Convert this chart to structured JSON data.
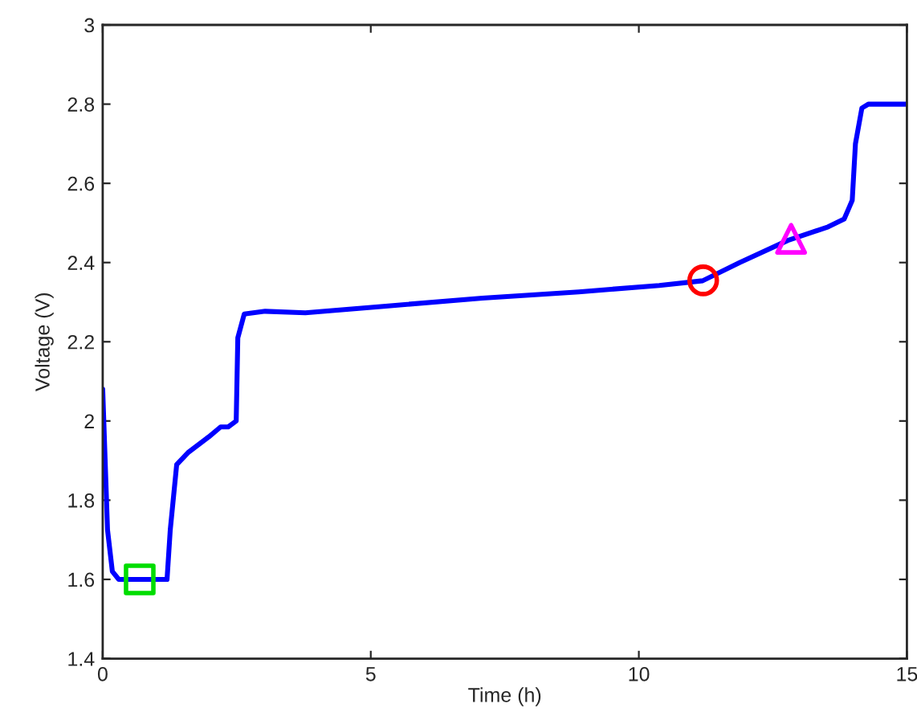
{
  "chart_data": {
    "type": "line",
    "xlabel": "Time (h)",
    "ylabel": "Voltage (V)",
    "xlim": [
      0,
      15
    ],
    "ylim": [
      1.4,
      3
    ],
    "xticks": [
      0,
      5,
      10,
      15
    ],
    "yticks": [
      1.4,
      1.6,
      1.8,
      2,
      2.2,
      2.4,
      2.6,
      2.8,
      3
    ],
    "grid": false,
    "series": [
      {
        "type": "line",
        "color": "#0000ff",
        "marker": "none",
        "x": [
          0,
          0.09,
          0.18,
          0.3,
          1.2,
          1.26,
          1.38,
          1.59,
          1.98,
          2.2,
          2.34,
          2.49,
          2.52,
          2.64,
          3.03,
          3.78,
          5.28,
          7.08,
          8.88,
          10.38,
          11.19,
          11.88,
          12.78,
          13.53,
          13.83,
          13.98,
          14.04,
          14.16,
          14.28,
          15
        ],
        "values": [
          2.08,
          1.725,
          1.62,
          1.6,
          1.6,
          1.725,
          1.89,
          1.92,
          1.96,
          1.985,
          1.985,
          2.0,
          2.21,
          2.27,
          2.277,
          2.273,
          2.29,
          2.31,
          2.326,
          2.342,
          2.354,
          2.4,
          2.456,
          2.49,
          2.51,
          2.557,
          2.7,
          2.79,
          2.8,
          2.8
        ]
      },
      {
        "type": "scatter",
        "color": "#00dd00",
        "marker": "square",
        "x": [
          0.69
        ],
        "values": [
          1.6
        ]
      },
      {
        "type": "scatter",
        "color": "#ff0000",
        "marker": "circle",
        "x": [
          11.2
        ],
        "values": [
          2.355
        ]
      },
      {
        "type": "scatter",
        "color": "#ff00ff",
        "marker": "triangle",
        "x": [
          12.84
        ],
        "values": [
          2.46
        ]
      }
    ]
  }
}
